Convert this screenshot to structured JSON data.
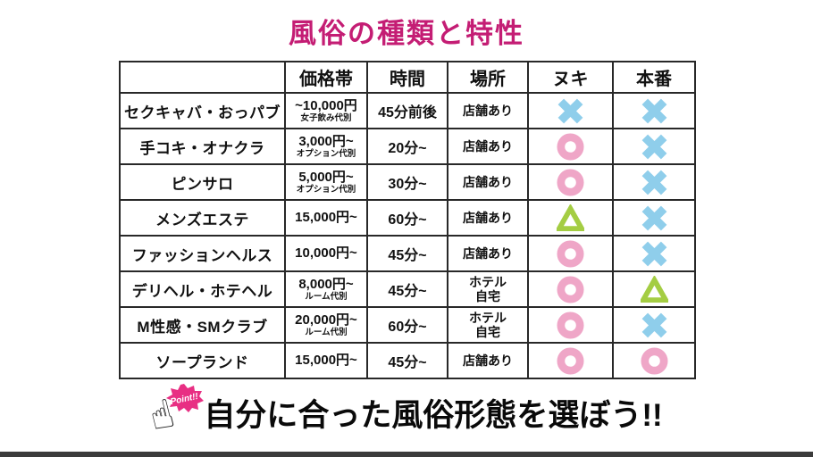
{
  "title": "風俗の種類と特性",
  "colors": {
    "title": "#c41d74",
    "circle": "#efa6c7",
    "cross": "#8fceeb",
    "triangle": "#a4cd43",
    "border": "#282828",
    "bottom_bar": "#3b3b3b",
    "burst_pink": "#e82f83"
  },
  "table": {
    "column_headers": [
      "価格帯",
      "時間",
      "場所",
      "ヌキ",
      "本番"
    ],
    "rows": [
      {
        "label": "セクキャバ・おっパブ",
        "price": "~10,000円",
        "price_note": "女子飲み代別",
        "time": "45分前後",
        "place": "店舗あり",
        "place_line2": "",
        "nuki": "cross",
        "honban": "cross"
      },
      {
        "label": "手コキ・オナクラ",
        "price": "3,000円~",
        "price_note": "オプション代別",
        "time": "20分~",
        "place": "店舗あり",
        "place_line2": "",
        "nuki": "circle",
        "honban": "cross"
      },
      {
        "label": "ピンサロ",
        "price": "5,000円~",
        "price_note": "オプション代別",
        "time": "30分~",
        "place": "店舗あり",
        "place_line2": "",
        "nuki": "circle",
        "honban": "cross"
      },
      {
        "label": "メンズエステ",
        "price": "15,000円~",
        "price_note": "",
        "time": "60分~",
        "place": "店舗あり",
        "place_line2": "",
        "nuki": "triangle",
        "honban": "cross"
      },
      {
        "label": "ファッションヘルス",
        "price": "10,000円~",
        "price_note": "",
        "time": "45分~",
        "place": "店舗あり",
        "place_line2": "",
        "nuki": "circle",
        "honban": "cross"
      },
      {
        "label": "デリヘル・ホテヘル",
        "price": "8,000円~",
        "price_note": "ルーム代別",
        "time": "45分~",
        "place": "ホテル",
        "place_line2": "自宅",
        "nuki": "circle",
        "honban": "triangle"
      },
      {
        "label": "M性感・SMクラブ",
        "price": "20,000円~",
        "price_note": "ルーム代別",
        "time": "60分~",
        "place": "ホテル",
        "place_line2": "自宅",
        "nuki": "circle",
        "honban": "cross"
      },
      {
        "label": "ソープランド",
        "price": "15,000円~",
        "price_note": "",
        "time": "45分~",
        "place": "店舗あり",
        "place_line2": "",
        "nuki": "circle",
        "honban": "circle"
      }
    ]
  },
  "footer": {
    "point_label": "Point!!",
    "text": "自分に合った風俗形態を選ぼう!!"
  }
}
